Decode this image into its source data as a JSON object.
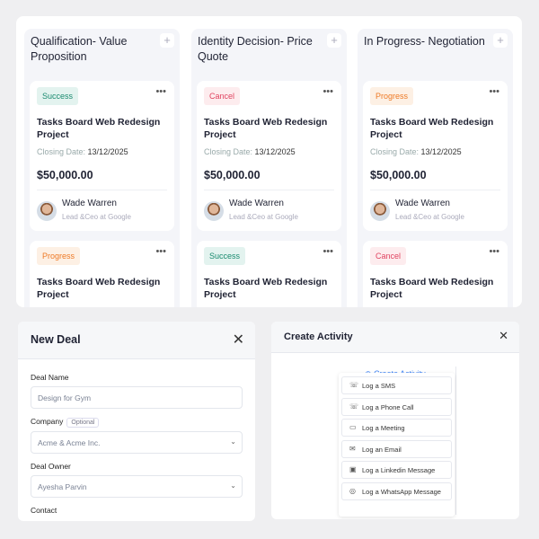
{
  "board": {
    "columns": [
      {
        "title": "Qualification- Value Proposition",
        "cards": [
          {
            "status": "Success",
            "status_type": "success",
            "title": "Tasks Board Web Redesign Project",
            "closing_label": "Closing Date:",
            "closing_date": "13/12/2025",
            "amount": "$50,000.00",
            "person": "Wade Warren",
            "role": "Lead &Ceo at Google"
          },
          {
            "status": "Progress",
            "status_type": "progress",
            "title": "Tasks Board Web Redesign Project"
          }
        ]
      },
      {
        "title": "Identity Decision- Price Quote",
        "cards": [
          {
            "status": "Cancel",
            "status_type": "cancel",
            "title": "Tasks Board Web Redesign Project",
            "closing_label": "Closing Date:",
            "closing_date": "13/12/2025",
            "amount": "$50,000.00",
            "person": "Wade Warren",
            "role": "Lead &Ceo at Google"
          },
          {
            "status": "Success",
            "status_type": "success",
            "title": "Tasks Board Web Redesign Project"
          }
        ]
      },
      {
        "title": "In Progress- Negotiation",
        "cards": [
          {
            "status": "Progress",
            "status_type": "progress",
            "title": "Tasks Board Web Redesign Project",
            "closing_label": "Closing Date:",
            "closing_date": "13/12/2025",
            "amount": "$50,000.00",
            "person": "Wade Warren",
            "role": "Lead &Ceo at Google"
          },
          {
            "status": "Cancel",
            "status_type": "cancel",
            "title": "Tasks Board Web Redesign Project"
          }
        ]
      }
    ]
  },
  "new_deal": {
    "title": "New Deal",
    "deal_name_label": "Deal Name",
    "deal_name_placeholder": "Design for Gym",
    "company_label": "Company",
    "company_optional": "Optional",
    "company_value": "Acme & Acme Inc.",
    "owner_label": "Deal Owner",
    "owner_value": "Ayesha Parvin",
    "contact_label": "Contact"
  },
  "create_activity": {
    "title": "Create Activity",
    "trigger": "Create Activity",
    "items": [
      {
        "label": "Log a SMS",
        "icon": "phone-icon"
      },
      {
        "label": "Log a Phone Call",
        "icon": "phone-icon"
      },
      {
        "label": "Log a Meeting",
        "icon": "video-icon"
      },
      {
        "label": "Log an Email",
        "icon": "mail-icon"
      },
      {
        "label": "Log a Linkedin Message",
        "icon": "linkedin-icon"
      },
      {
        "label": "Log a WhatsApp Message",
        "icon": "whatsapp-icon"
      }
    ]
  },
  "colors": {
    "accent": "#3b82f6",
    "success": "#1a8b6f",
    "progress": "#ee7a26",
    "cancel": "#e04360"
  }
}
